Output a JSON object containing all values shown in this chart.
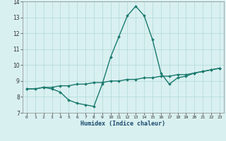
{
  "xlabel": "Humidex (Indice chaleur)",
  "x": [
    0,
    1,
    2,
    3,
    4,
    5,
    6,
    7,
    8,
    9,
    10,
    11,
    12,
    13,
    14,
    15,
    16,
    17,
    18,
    19,
    20,
    21,
    22,
    23
  ],
  "line1": [
    8.5,
    8.5,
    8.6,
    8.5,
    8.3,
    7.8,
    7.6,
    7.5,
    7.4,
    8.8,
    10.5,
    11.8,
    13.1,
    13.7,
    13.1,
    11.6,
    9.5,
    8.8,
    9.2,
    9.3,
    9.5,
    9.6,
    9.7,
    9.8
  ],
  "line2": [
    8.5,
    8.5,
    8.6,
    8.6,
    8.7,
    8.7,
    8.8,
    8.8,
    8.9,
    8.9,
    9.0,
    9.0,
    9.1,
    9.1,
    9.2,
    9.2,
    9.3,
    9.3,
    9.4,
    9.4,
    9.5,
    9.6,
    9.7,
    9.8
  ],
  "line_color": "#1a7a6e",
  "bg_color": "#d9f0f0",
  "grid_color": "#b0d8d8",
  "ylim": [
    7,
    14
  ],
  "xlim": [
    -0.5,
    23.5
  ],
  "yticks": [
    7,
    8,
    9,
    10,
    11,
    12,
    13,
    14
  ],
  "xticks": [
    0,
    1,
    2,
    3,
    4,
    5,
    6,
    7,
    8,
    9,
    10,
    11,
    12,
    13,
    14,
    15,
    16,
    17,
    18,
    19,
    20,
    21,
    22,
    23
  ],
  "marker": "D",
  "markersize": 1.8,
  "linewidth": 1.0
}
